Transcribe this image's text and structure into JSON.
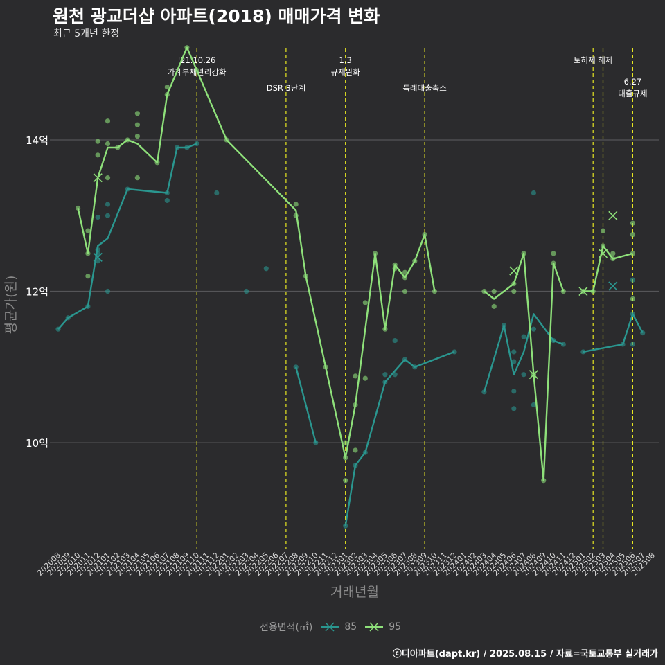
{
  "title": "원천 광교더샵 아파트(2018) 매매가격 변화",
  "subtitle": "최근 5개년 한정",
  "caption": "ⓒ디아파트(dapt.kr) / 2025.08.15 / 자료=국토교통부 실거래가",
  "colors": {
    "s85": "#2a968f",
    "s95": "#8ee07a",
    "vline": "#e6e622",
    "grid": "#555558",
    "bg": "#2b2b2d"
  },
  "chart_data": {
    "type": "line",
    "xlabel": "거래년월",
    "ylabel": "평균가(원)",
    "ylim": [
      8.6,
      15.3
    ],
    "y_ticks": [
      {
        "value": 10,
        "label": "10억"
      },
      {
        "value": 12,
        "label": "12억"
      },
      {
        "value": 14,
        "label": "14억"
      }
    ],
    "x_start": "2020-08",
    "categories": [
      "202008",
      "202009",
      "202010",
      "202011",
      "202012",
      "202101",
      "202102",
      "202103",
      "202104",
      "202105",
      "202106",
      "202107",
      "202108",
      "202109",
      "202110",
      "202111",
      "202112",
      "202201",
      "202202",
      "202203",
      "202204",
      "202205",
      "202206",
      "202207",
      "202208",
      "202209",
      "202210",
      "202211",
      "202212",
      "202301",
      "202302",
      "202303",
      "202304",
      "202305",
      "202306",
      "202307",
      "202308",
      "202309",
      "202310",
      "202311",
      "202312",
      "202401",
      "202402",
      "202403",
      "202404",
      "202405",
      "202406",
      "202407",
      "202408",
      "202409",
      "202410",
      "202411",
      "202412",
      "202501",
      "202502",
      "202503",
      "202504",
      "202505",
      "202506",
      "202507",
      "202508"
    ],
    "legend_title": "전용면적(㎡)",
    "legend_position": "bottom",
    "annotations": [
      {
        "month": 14,
        "label": "'21.10.26 가계부채관리강화",
        "lines": [
          "'21.10.26",
          "가계부채관리강화"
        ],
        "level": 0
      },
      {
        "month": 23,
        "label": "DSR 3단계",
        "lines": [
          "DSR 3단계"
        ],
        "level": 1
      },
      {
        "month": 29,
        "label": "1.3 규제완화",
        "lines": [
          "1.3",
          "규제완화"
        ],
        "level": 0
      },
      {
        "month": 37,
        "label": "특례대출축소",
        "lines": [
          "특례대출축소"
        ],
        "level": 1
      },
      {
        "month": 54,
        "label": "토허제 해제",
        "lines": [
          "토허제 해제"
        ],
        "level": 0
      },
      {
        "month": 55,
        "label": "",
        "lines": [],
        "level": 0
      },
      {
        "month": 58,
        "label": "6.27 대출규제",
        "lines": [
          "6.27",
          "대출규제"
        ],
        "level": 2
      }
    ],
    "series": [
      {
        "name": "85",
        "line": [
          [
            0,
            11.5
          ],
          [
            1,
            11.65
          ],
          [
            3,
            11.8
          ],
          [
            4,
            12.6
          ],
          [
            5,
            12.7
          ],
          [
            7,
            13.35
          ],
          [
            11,
            13.3
          ],
          [
            12,
            13.9
          ],
          [
            13,
            13.9
          ],
          [
            14,
            13.95
          ],
          [
            24,
            11.0
          ],
          [
            26,
            10.0
          ],
          [
            29,
            8.9
          ],
          [
            30,
            9.7
          ],
          [
            31,
            9.87
          ],
          [
            33,
            10.8
          ],
          [
            35,
            11.1
          ],
          [
            36,
            11.0
          ],
          [
            40,
            11.2
          ],
          [
            43,
            10.67
          ],
          [
            45,
            11.55
          ],
          [
            46,
            10.9
          ],
          [
            47,
            11.2
          ],
          [
            48,
            11.7
          ],
          [
            50,
            11.35
          ],
          [
            51,
            11.3
          ],
          [
            53,
            11.2
          ],
          [
            57,
            11.3
          ],
          [
            58,
            11.7
          ],
          [
            59,
            11.45
          ]
        ],
        "points": [
          [
            0,
            11.5
          ],
          [
            1,
            11.65
          ],
          [
            3,
            11.8
          ],
          [
            4,
            12.5
          ],
          [
            4,
            12.55
          ],
          [
            4,
            12.4
          ],
          [
            4,
            12.98
          ],
          [
            5,
            13.15
          ],
          [
            5,
            13.0
          ],
          [
            5,
            12.0
          ],
          [
            7,
            13.35
          ],
          [
            11,
            13.3
          ],
          [
            11,
            13.2
          ],
          [
            12,
            13.9
          ],
          [
            13,
            13.9
          ],
          [
            14,
            13.95
          ],
          [
            16,
            13.3
          ],
          [
            19,
            12.0
          ],
          [
            21,
            12.3
          ],
          [
            24,
            11.0
          ],
          [
            26,
            10.0
          ],
          [
            29,
            8.9
          ],
          [
            30,
            9.7
          ],
          [
            31,
            9.87
          ],
          [
            33,
            10.8
          ],
          [
            33,
            10.9
          ],
          [
            34,
            10.9
          ],
          [
            34,
            11.35
          ],
          [
            35,
            11.1
          ],
          [
            36,
            11.0
          ],
          [
            40,
            11.2
          ],
          [
            43,
            10.67
          ],
          [
            45,
            11.55
          ],
          [
            46,
            10.45
          ],
          [
            46,
            10.68
          ],
          [
            46,
            11.07
          ],
          [
            46,
            11.2
          ],
          [
            47,
            10.9
          ],
          [
            47,
            11.4
          ],
          [
            48,
            11.5
          ],
          [
            48,
            13.3
          ],
          [
            48,
            10.5
          ],
          [
            50,
            11.35
          ],
          [
            51,
            11.3
          ],
          [
            53,
            11.2
          ],
          [
            57,
            11.3
          ],
          [
            58,
            11.3
          ],
          [
            58,
            11.7
          ],
          [
            58,
            12.15
          ],
          [
            59,
            11.45
          ]
        ],
        "crosses": [
          [
            4,
            12.45
          ],
          [
            56,
            12.07
          ]
        ]
      },
      {
        "name": "95",
        "line": [
          [
            2,
            13.1
          ],
          [
            3,
            12.5
          ],
          [
            4,
            13.5
          ],
          [
            5,
            13.9
          ],
          [
            6,
            13.9
          ],
          [
            7,
            14.0
          ],
          [
            8,
            13.95
          ],
          [
            10,
            13.7
          ],
          [
            11,
            14.6
          ],
          [
            13,
            15.22
          ],
          [
            14,
            14.92
          ],
          [
            17,
            14.0
          ],
          [
            24,
            13.07
          ],
          [
            25,
            12.2
          ],
          [
            27,
            11.0
          ],
          [
            29,
            9.8
          ],
          [
            30,
            10.5
          ],
          [
            32,
            12.5
          ],
          [
            33,
            11.5
          ],
          [
            34,
            12.35
          ],
          [
            35,
            12.18
          ],
          [
            36,
            12.4
          ],
          [
            37,
            12.75
          ],
          [
            38,
            12.0
          ],
          [
            43,
            12.0
          ],
          [
            44,
            11.9
          ],
          [
            46,
            12.1
          ],
          [
            47,
            12.5
          ],
          [
            48,
            10.9
          ],
          [
            49,
            9.5
          ],
          [
            50,
            12.37
          ],
          [
            51,
            12.0
          ],
          [
            53,
            12.0
          ],
          [
            54,
            12.0
          ],
          [
            55,
            12.6
          ],
          [
            56,
            12.43
          ],
          [
            58,
            12.5
          ]
        ],
        "points": [
          [
            2,
            13.1
          ],
          [
            3,
            12.8
          ],
          [
            3,
            12.2
          ],
          [
            3,
            12.5
          ],
          [
            4,
            13.8
          ],
          [
            4,
            13.98
          ],
          [
            5,
            14.25
          ],
          [
            5,
            13.95
          ],
          [
            5,
            13.5
          ],
          [
            6,
            13.9
          ],
          [
            7,
            14.0
          ],
          [
            8,
            14.35
          ],
          [
            8,
            14.2
          ],
          [
            8,
            14.05
          ],
          [
            8,
            13.5
          ],
          [
            10,
            13.7
          ],
          [
            11,
            14.7
          ],
          [
            11,
            14.6
          ],
          [
            13,
            15.22
          ],
          [
            14,
            14.92
          ],
          [
            17,
            14.0
          ],
          [
            24,
            13.15
          ],
          [
            24,
            13.0
          ],
          [
            25,
            12.2
          ],
          [
            27,
            11.0
          ],
          [
            29,
            10.0
          ],
          [
            29,
            9.8
          ],
          [
            29,
            9.5
          ],
          [
            30,
            10.5
          ],
          [
            30,
            10.88
          ],
          [
            30,
            9.9
          ],
          [
            31,
            10.85
          ],
          [
            31,
            11.85
          ],
          [
            32,
            12.5
          ],
          [
            33,
            11.5
          ],
          [
            34,
            12.35
          ],
          [
            34,
            12.3
          ],
          [
            35,
            12.18
          ],
          [
            35,
            12.25
          ],
          [
            35,
            12.0
          ],
          [
            36,
            12.4
          ],
          [
            37,
            12.75
          ],
          [
            38,
            12.0
          ],
          [
            43,
            12.0
          ],
          [
            44,
            12.0
          ],
          [
            44,
            11.8
          ],
          [
            46,
            12.0
          ],
          [
            46,
            12.1
          ],
          [
            47,
            12.5
          ],
          [
            48,
            10.9
          ],
          [
            49,
            9.5
          ],
          [
            50,
            12.5
          ],
          [
            50,
            12.37
          ],
          [
            51,
            12.0
          ],
          [
            53,
            12.0
          ],
          [
            54,
            12.0
          ],
          [
            55,
            12.8
          ],
          [
            55,
            12.6
          ],
          [
            56,
            12.5
          ],
          [
            56,
            12.43
          ],
          [
            58,
            12.9
          ],
          [
            58,
            12.75
          ],
          [
            58,
            11.9
          ],
          [
            58,
            12.5
          ]
        ],
        "crosses": [
          [
            4,
            13.5
          ],
          [
            46,
            12.27
          ],
          [
            48,
            10.9
          ],
          [
            53,
            12.0
          ],
          [
            55,
            12.5
          ],
          [
            56,
            13.0
          ]
        ]
      }
    ]
  }
}
